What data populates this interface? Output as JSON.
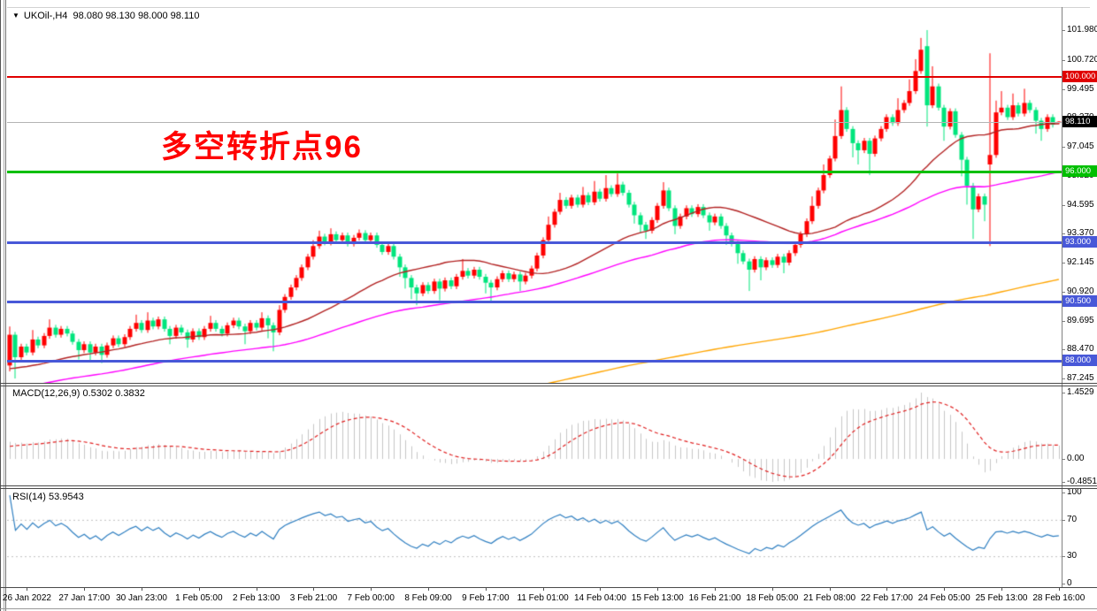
{
  "window": {
    "title_text": "UKOil-,H4  98.080 98.130 98.000 98.110",
    "symbol": "UKOil-",
    "timeframe": "H4",
    "ohlc_display": {
      "open": "98.080",
      "high": "98.130",
      "low": "98.000",
      "close": "98.110"
    }
  },
  "annotation": {
    "text": "多空转折点96",
    "color": "#ff0000"
  },
  "colors": {
    "bull": "#ff0000",
    "bear": "#00e57d",
    "ma_fast": "#b22222",
    "ma_mid": "#ff00ff",
    "ma_slow": "#ffa500",
    "macd_hist": "#c6c6c6",
    "macd_signal": "#e02020",
    "rsi_line": "#2f7fc1",
    "rsi_levels": "#c0c0c0",
    "current_line": "#b4b4b4",
    "current_tag_bg": "#000000"
  },
  "chart_data": {
    "type": "candlestick",
    "symbol": "UKOil-",
    "timeframe": "H4",
    "price_axis_ticks": [
      "101.980",
      "100.720",
      "99.495",
      "98.270",
      "97.045",
      "95.820",
      "94.595",
      "93.370",
      "92.145",
      "90.920",
      "89.695",
      "88.470",
      "87.245"
    ],
    "time_axis": {
      "labels": [
        "26 Jan 2022",
        "27 Jan 17:00",
        "30 Jan 23:00",
        "1 Feb 05:00",
        "2 Feb 13:00",
        "3 Feb 21:00",
        "7 Feb 00:00",
        "8 Feb 09:00",
        "9 Feb 17:00",
        "11 Feb 01:00",
        "14 Feb 04:00",
        "15 Feb 13:00",
        "16 Feb 21:00",
        "18 Feb 05:00",
        "21 Feb 08:00",
        "22 Feb 17:00",
        "24 Feb 05:00",
        "25 Feb 13:00",
        "28 Feb 16:00"
      ],
      "first_bar_index": 3,
      "bar_step": 10
    },
    "hlines": [
      {
        "price": 100.0,
        "label": "100.000",
        "color": "#e00000",
        "width": 2
      },
      {
        "price": 96.0,
        "label": "96.000",
        "color": "#00bf00",
        "width": 3
      },
      {
        "price": 93.0,
        "label": "93.000",
        "color": "#4858d8",
        "width": 3
      },
      {
        "price": 90.5,
        "label": "90.500",
        "color": "#4858d8",
        "width": 3
      },
      {
        "price": 88.0,
        "label": "88.000",
        "color": "#4858d8",
        "width": 3
      }
    ],
    "current_price": {
      "price": 98.11,
      "label": "98.110"
    },
    "overlays": [
      {
        "name": "ma-fast",
        "period_estimate": 30,
        "color": "#b22222"
      },
      {
        "name": "ma-mid",
        "period_estimate": 72,
        "color": "#ff00ff"
      },
      {
        "name": "ma-slow",
        "period_estimate": 250,
        "color": "#ffa500"
      }
    ],
    "indicators": {
      "macd": {
        "display": "MACD(12,26,9) 0.5302 0.3832",
        "fast": 12,
        "slow": 26,
        "signal": 9,
        "value_main": "0.5302",
        "value_signal": "0.3832",
        "axis_ticks": [
          "1.4529",
          "0.00",
          "-0.4851"
        ]
      },
      "rsi": {
        "display": "RSI(14) 53.9543",
        "period": 14,
        "value": "53.9543",
        "axis_ticks": [
          "100",
          "70",
          "30",
          "0"
        ],
        "levels": [
          70,
          30
        ]
      }
    },
    "candles": [
      [
        87.8,
        89.45,
        87.55,
        89.1
      ],
      [
        89.1,
        89.22,
        87.25,
        88.15
      ],
      [
        88.15,
        88.72,
        88.03,
        88.6
      ],
      [
        88.6,
        88.72,
        88.23,
        88.35
      ],
      [
        88.35,
        89.3,
        88.23,
        88.9
      ],
      [
        88.9,
        89.02,
        88.53,
        88.65
      ],
      [
        88.65,
        89.17,
        88.53,
        89.05
      ],
      [
        89.05,
        89.75,
        88.93,
        89.4
      ],
      [
        89.4,
        89.52,
        88.98,
        89.1
      ],
      [
        89.1,
        89.47,
        88.98,
        89.35
      ],
      [
        89.35,
        89.47,
        89.03,
        89.15
      ],
      [
        89.15,
        89.27,
        88.68,
        88.8
      ],
      [
        88.8,
        88.92,
        88.05,
        88.45
      ],
      [
        88.45,
        88.82,
        88.33,
        88.7
      ],
      [
        88.7,
        88.82,
        87.95,
        88.35
      ],
      [
        88.35,
        88.72,
        88.23,
        88.6
      ],
      [
        88.6,
        88.72,
        87.9,
        88.25
      ],
      [
        88.25,
        88.77,
        88.13,
        88.65
      ],
      [
        88.65,
        89.07,
        88.53,
        88.95
      ],
      [
        88.95,
        89.07,
        88.58,
        88.7
      ],
      [
        88.7,
        89.12,
        88.58,
        89.0
      ],
      [
        89.0,
        89.47,
        88.88,
        89.35
      ],
      [
        89.35,
        89.95,
        89.23,
        89.6
      ],
      [
        89.6,
        89.72,
        89.18,
        89.3
      ],
      [
        89.3,
        90.05,
        89.18,
        89.7
      ],
      [
        89.7,
        89.82,
        89.33,
        89.45
      ],
      [
        89.45,
        89.87,
        89.33,
        89.75
      ],
      [
        89.75,
        89.87,
        89.23,
        89.35
      ],
      [
        89.35,
        89.47,
        88.7,
        89.05
      ],
      [
        89.05,
        89.52,
        88.93,
        89.4
      ],
      [
        89.4,
        89.52,
        89.08,
        89.2
      ],
      [
        89.2,
        89.32,
        88.55,
        88.9
      ],
      [
        88.9,
        89.37,
        88.78,
        89.25
      ],
      [
        89.25,
        89.37,
        88.88,
        89.0
      ],
      [
        89.0,
        89.47,
        88.88,
        89.35
      ],
      [
        89.35,
        89.9,
        89.23,
        89.6
      ],
      [
        89.6,
        89.72,
        89.23,
        89.35
      ],
      [
        89.35,
        89.47,
        89.03,
        89.15
      ],
      [
        89.15,
        89.62,
        89.03,
        89.5
      ],
      [
        89.5,
        89.82,
        89.38,
        89.7
      ],
      [
        89.7,
        89.82,
        89.33,
        89.45
      ],
      [
        89.45,
        89.57,
        88.7,
        89.25
      ],
      [
        89.25,
        89.72,
        89.13,
        89.6
      ],
      [
        89.6,
        89.72,
        89.28,
        89.4
      ],
      [
        89.4,
        90.05,
        89.28,
        89.8
      ],
      [
        89.8,
        89.92,
        88.95,
        89.5
      ],
      [
        89.5,
        89.62,
        88.4,
        89.2
      ],
      [
        89.2,
        90.35,
        89.08,
        90.15
      ],
      [
        90.15,
        90.82,
        90.03,
        90.7
      ],
      [
        90.7,
        91.22,
        90.58,
        91.1
      ],
      [
        91.1,
        91.62,
        90.98,
        91.5
      ],
      [
        91.5,
        92.07,
        91.38,
        91.95
      ],
      [
        91.95,
        92.52,
        91.83,
        92.4
      ],
      [
        92.4,
        93.1,
        92.28,
        92.85
      ],
      [
        92.85,
        93.5,
        92.73,
        93.25
      ],
      [
        93.25,
        93.37,
        92.88,
        93.0
      ],
      [
        93.0,
        93.6,
        92.88,
        93.35
      ],
      [
        93.35,
        93.47,
        92.98,
        93.1
      ],
      [
        93.1,
        93.42,
        92.98,
        93.3
      ],
      [
        93.3,
        93.42,
        92.83,
        92.95
      ],
      [
        92.95,
        93.32,
        92.83,
        93.2
      ],
      [
        93.2,
        93.55,
        93.08,
        93.4
      ],
      [
        93.4,
        93.52,
        92.98,
        93.1
      ],
      [
        93.1,
        93.42,
        92.98,
        93.3
      ],
      [
        93.3,
        93.42,
        92.78,
        92.9
      ],
      [
        92.9,
        93.02,
        92.48,
        92.6
      ],
      [
        92.6,
        92.97,
        92.48,
        92.85
      ],
      [
        92.85,
        92.97,
        92.28,
        92.4
      ],
      [
        92.4,
        92.52,
        91.55,
        91.95
      ],
      [
        91.95,
        92.07,
        91.05,
        91.5
      ],
      [
        91.5,
        91.62,
        90.6,
        91.1
      ],
      [
        91.1,
        91.22,
        90.35,
        90.85
      ],
      [
        90.85,
        91.32,
        90.73,
        91.2
      ],
      [
        91.2,
        91.32,
        90.83,
        90.95
      ],
      [
        90.95,
        91.47,
        90.83,
        91.35
      ],
      [
        91.35,
        91.47,
        90.55,
        91.05
      ],
      [
        91.05,
        91.52,
        90.93,
        91.4
      ],
      [
        91.4,
        91.52,
        91.03,
        91.15
      ],
      [
        91.15,
        91.67,
        91.03,
        91.55
      ],
      [
        91.55,
        92.3,
        91.43,
        91.8
      ],
      [
        91.8,
        91.92,
        91.48,
        91.6
      ],
      [
        91.6,
        91.97,
        91.48,
        91.85
      ],
      [
        91.85,
        91.97,
        91.43,
        91.55
      ],
      [
        91.55,
        91.67,
        90.85,
        91.3
      ],
      [
        91.3,
        91.42,
        90.5,
        91.1
      ],
      [
        91.1,
        91.57,
        90.98,
        91.45
      ],
      [
        91.45,
        91.82,
        91.33,
        91.7
      ],
      [
        91.7,
        91.82,
        91.33,
        91.45
      ],
      [
        91.45,
        91.77,
        91.33,
        91.65
      ],
      [
        91.65,
        91.77,
        90.95,
        91.35
      ],
      [
        91.35,
        91.72,
        91.23,
        91.6
      ],
      [
        91.6,
        92.02,
        91.48,
        91.9
      ],
      [
        91.9,
        92.57,
        91.78,
        92.45
      ],
      [
        92.45,
        93.22,
        92.33,
        93.1
      ],
      [
        93.1,
        94.1,
        92.98,
        93.75
      ],
      [
        93.75,
        94.42,
        93.63,
        94.3
      ],
      [
        94.3,
        95.1,
        94.18,
        94.8
      ],
      [
        94.8,
        94.92,
        94.43,
        94.55
      ],
      [
        94.55,
        95.02,
        94.43,
        94.9
      ],
      [
        94.9,
        95.02,
        94.48,
        94.6
      ],
      [
        94.6,
        95.35,
        94.48,
        95.0
      ],
      [
        95.0,
        95.12,
        94.58,
        94.7
      ],
      [
        94.7,
        95.6,
        94.58,
        95.15
      ],
      [
        95.15,
        95.27,
        94.73,
        94.85
      ],
      [
        94.85,
        95.85,
        94.73,
        95.3
      ],
      [
        95.3,
        95.42,
        94.93,
        95.05
      ],
      [
        95.05,
        95.92,
        94.93,
        95.45
      ],
      [
        95.45,
        95.57,
        94.98,
        95.1
      ],
      [
        95.1,
        95.22,
        94.48,
        94.6
      ],
      [
        94.6,
        94.72,
        93.8,
        94.15
      ],
      [
        94.15,
        94.27,
        93.4,
        93.75
      ],
      [
        93.75,
        93.87,
        93.15,
        93.5
      ],
      [
        93.5,
        94.07,
        93.38,
        93.95
      ],
      [
        93.95,
        94.67,
        93.83,
        94.55
      ],
      [
        94.55,
        95.55,
        94.43,
        95.2
      ],
      [
        95.2,
        95.32,
        94.33,
        94.45
      ],
      [
        94.45,
        94.57,
        93.35,
        93.7
      ],
      [
        93.7,
        94.22,
        93.58,
        94.1
      ],
      [
        94.1,
        94.57,
        93.98,
        94.45
      ],
      [
        94.45,
        94.57,
        94.08,
        94.2
      ],
      [
        94.2,
        94.62,
        94.08,
        94.5
      ],
      [
        94.5,
        94.62,
        94.03,
        94.15
      ],
      [
        94.15,
        94.27,
        93.5,
        93.85
      ],
      [
        93.85,
        94.22,
        93.73,
        94.1
      ],
      [
        94.1,
        94.22,
        93.58,
        93.7
      ],
      [
        93.7,
        93.82,
        92.9,
        93.3
      ],
      [
        93.3,
        93.42,
        92.83,
        92.95
      ],
      [
        92.95,
        93.07,
        92.1,
        92.55
      ],
      [
        92.55,
        92.67,
        92.08,
        92.2
      ],
      [
        92.2,
        92.32,
        90.95,
        91.85
      ],
      [
        91.85,
        92.42,
        91.73,
        92.3
      ],
      [
        92.3,
        92.42,
        91.4,
        91.95
      ],
      [
        91.95,
        92.37,
        91.83,
        92.25
      ],
      [
        92.25,
        92.37,
        91.93,
        92.05
      ],
      [
        92.05,
        92.52,
        91.93,
        92.4
      ],
      [
        92.4,
        92.52,
        91.7,
        92.15
      ],
      [
        92.15,
        92.67,
        92.03,
        92.55
      ],
      [
        92.55,
        93.02,
        92.43,
        92.9
      ],
      [
        92.9,
        93.47,
        92.78,
        93.35
      ],
      [
        93.35,
        94.02,
        93.23,
        93.9
      ],
      [
        93.9,
        94.95,
        93.78,
        94.55
      ],
      [
        94.55,
        95.32,
        94.43,
        95.2
      ],
      [
        95.2,
        96.3,
        95.08,
        95.85
      ],
      [
        95.85,
        96.67,
        95.73,
        96.55
      ],
      [
        96.55,
        98.2,
        96.43,
        97.5
      ],
      [
        97.5,
        99.6,
        97.38,
        98.6
      ],
      [
        98.6,
        98.72,
        97.68,
        97.8
      ],
      [
        97.8,
        97.92,
        96.6,
        97.2
      ],
      [
        97.2,
        97.32,
        96.3,
        96.9
      ],
      [
        96.9,
        97.42,
        96.78,
        97.3
      ],
      [
        97.3,
        97.42,
        95.85,
        96.75
      ],
      [
        96.75,
        97.52,
        96.63,
        97.4
      ],
      [
        97.4,
        97.92,
        97.28,
        97.8
      ],
      [
        97.8,
        98.42,
        97.68,
        98.3
      ],
      [
        98.3,
        98.42,
        97.93,
        98.05
      ],
      [
        98.05,
        99.1,
        97.93,
        98.6
      ],
      [
        98.6,
        99.02,
        98.48,
        98.9
      ],
      [
        98.9,
        99.9,
        98.78,
        99.4
      ],
      [
        99.4,
        100.75,
        99.28,
        100.25
      ],
      [
        100.25,
        101.65,
        100.13,
        101.15
      ],
      [
        101.3,
        101.98,
        97.9,
        98.8
      ],
      [
        98.8,
        100.45,
        98.68,
        99.6
      ],
      [
        99.6,
        99.72,
        98.58,
        98.7
      ],
      [
        98.7,
        98.82,
        97.3,
        97.9
      ],
      [
        97.9,
        98.67,
        97.78,
        98.55
      ],
      [
        98.55,
        98.67,
        97.43,
        97.55
      ],
      [
        97.55,
        97.67,
        95.8,
        96.5
      ],
      [
        96.5,
        96.62,
        94.6,
        95.4
      ],
      [
        95.4,
        95.52,
        93.15,
        94.4
      ],
      [
        94.4,
        95.07,
        94.28,
        94.95
      ],
      [
        94.95,
        95.07,
        93.9,
        94.6
      ],
      [
        96.3,
        101.0,
        92.85,
        96.7
      ],
      [
        96.7,
        99.0,
        96.58,
        98.5
      ],
      [
        98.5,
        99.4,
        98.38,
        98.7
      ],
      [
        98.7,
        98.82,
        98.18,
        98.3
      ],
      [
        98.3,
        99.3,
        98.18,
        98.8
      ],
      [
        98.8,
        98.92,
        98.33,
        98.45
      ],
      [
        98.45,
        99.5,
        98.33,
        98.9
      ],
      [
        98.9,
        99.02,
        98.48,
        98.6
      ],
      [
        98.6,
        98.72,
        97.6,
        98.15
      ],
      [
        98.15,
        98.27,
        97.3,
        97.8
      ],
      [
        97.8,
        98.42,
        97.68,
        98.3
      ],
      [
        98.3,
        98.42,
        97.86,
        97.98
      ],
      [
        98.08,
        98.13,
        98.0,
        98.11
      ]
    ]
  }
}
